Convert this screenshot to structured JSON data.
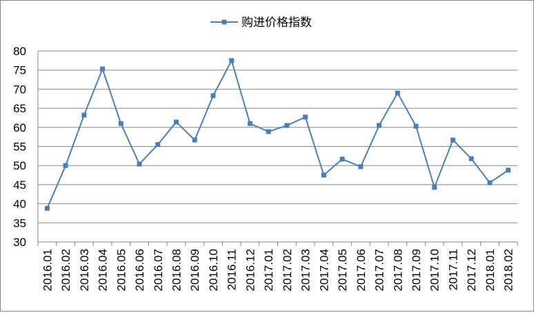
{
  "chart_data": {
    "type": "line",
    "categories": [
      "2016.01",
      "2016.02",
      "2016.03",
      "2016.04",
      "2016.05",
      "2016.06",
      "2016.07",
      "2016.08",
      "2016.09",
      "2016.10",
      "2016.11",
      "2016.12",
      "2017.01",
      "2017.02",
      "2017.03",
      "2017.04",
      "2017.05",
      "2017.06",
      "2017.07",
      "2017.08",
      "2017.09",
      "2017.10",
      "2017.11",
      "2017.12",
      "2018.01",
      "2018.02"
    ],
    "series": [
      {
        "name": "购进价格指数",
        "color": "#4a7ebb",
        "values": [
          38.8,
          50.0,
          63.2,
          75.3,
          61.0,
          50.4,
          55.5,
          61.4,
          56.7,
          68.3,
          77.5,
          61.0,
          58.9,
          60.5,
          62.7,
          47.5,
          51.7,
          49.7,
          60.5,
          69.0,
          60.3,
          44.3,
          56.7,
          51.8,
          45.5,
          48.8
        ]
      }
    ],
    "ylim": [
      30,
      80
    ],
    "yticks": [
      30,
      35,
      40,
      45,
      50,
      55,
      60,
      65,
      70,
      75,
      80
    ],
    "grid": true
  }
}
